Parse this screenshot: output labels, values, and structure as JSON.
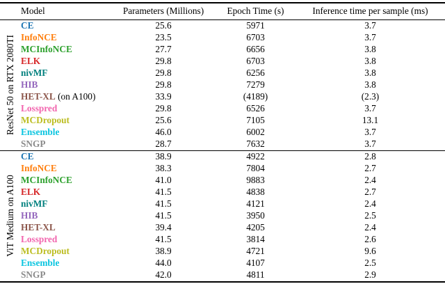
{
  "table": {
    "headers": [
      "Model",
      "Parameters (Millions)",
      "Epoch Time (s)",
      "Inference time per sample (ms)"
    ],
    "groups": [
      {
        "label": "ResNet 50 on RTX 2080TI",
        "rows": [
          {
            "model": "CE",
            "suffix": "",
            "color": "#1f77b4",
            "params": "25.6",
            "epoch": "5971",
            "inference": "3.7"
          },
          {
            "model": "InfoNCE",
            "suffix": "",
            "color": "#ff7f0e",
            "params": "23.5",
            "epoch": "6703",
            "inference": "3.7"
          },
          {
            "model": "MCInfoNCE",
            "suffix": "",
            "color": "#2ca02c",
            "params": "27.7",
            "epoch": "6656",
            "inference": "3.8"
          },
          {
            "model": "ELK",
            "suffix": "",
            "color": "#d62728",
            "params": "29.8",
            "epoch": "6703",
            "inference": "3.8"
          },
          {
            "model": "nivMF",
            "suffix": "",
            "color": "#00807e",
            "params": "29.8",
            "epoch": "6256",
            "inference": "3.8"
          },
          {
            "model": "HIB",
            "suffix": "",
            "color": "#9467bd",
            "params": "29.8",
            "epoch": "7279",
            "inference": "3.8"
          },
          {
            "model": "HET-XL",
            "suffix": " (on A100)",
            "color": "#8c564b",
            "params": "33.9",
            "epoch": "(4189)",
            "inference": "(2.3)"
          },
          {
            "model": "Losspred",
            "suffix": "",
            "color": "#f265ae",
            "params": "29.8",
            "epoch": "6526",
            "inference": "3.7"
          },
          {
            "model": "MCDropout",
            "suffix": "",
            "color": "#bcbd22",
            "params": "25.6",
            "epoch": "7105",
            "inference": "13.1"
          },
          {
            "model": "Ensemble",
            "suffix": "",
            "color": "#0bc5e0",
            "params": "46.0",
            "epoch": "6002",
            "inference": "3.7"
          },
          {
            "model": "SNGP",
            "suffix": "",
            "color": "#8a8a8a",
            "params": "28.7",
            "epoch": "7632",
            "inference": "3.7"
          }
        ]
      },
      {
        "label": "ViT Medium on A100",
        "rows": [
          {
            "model": "CE",
            "suffix": "",
            "color": "#1f77b4",
            "params": "38.9",
            "epoch": "4922",
            "inference": "2.8"
          },
          {
            "model": "InfoNCE",
            "suffix": "",
            "color": "#ff7f0e",
            "params": "38.3",
            "epoch": "7804",
            "inference": "2.7"
          },
          {
            "model": "MCInfoNCE",
            "suffix": "",
            "color": "#2ca02c",
            "params": "41.0",
            "epoch": "9883",
            "inference": "2.4"
          },
          {
            "model": "ELK",
            "suffix": "",
            "color": "#d62728",
            "params": "41.5",
            "epoch": "4838",
            "inference": "2.7"
          },
          {
            "model": "nivMF",
            "suffix": "",
            "color": "#00807e",
            "params": "41.5",
            "epoch": "4121",
            "inference": "2.4"
          },
          {
            "model": "HIB",
            "suffix": "",
            "color": "#9467bd",
            "params": "41.5",
            "epoch": "3950",
            "inference": "2.5"
          },
          {
            "model": "HET-XL",
            "suffix": "",
            "color": "#8c564b",
            "params": "39.4",
            "epoch": "4205",
            "inference": "2.4"
          },
          {
            "model": "Losspred",
            "suffix": "",
            "color": "#f265ae",
            "params": "41.5",
            "epoch": "3814",
            "inference": "2.6"
          },
          {
            "model": "MCDropout",
            "suffix": "",
            "color": "#bcbd22",
            "params": "38.9",
            "epoch": "4721",
            "inference": "9.6"
          },
          {
            "model": "Ensemble",
            "suffix": "",
            "color": "#0bc5e0",
            "params": "44.0",
            "epoch": "4107",
            "inference": "2.5"
          },
          {
            "model": "SNGP",
            "suffix": "",
            "color": "#8a8a8a",
            "params": "42.0",
            "epoch": "4811",
            "inference": "2.9"
          }
        ]
      }
    ]
  }
}
